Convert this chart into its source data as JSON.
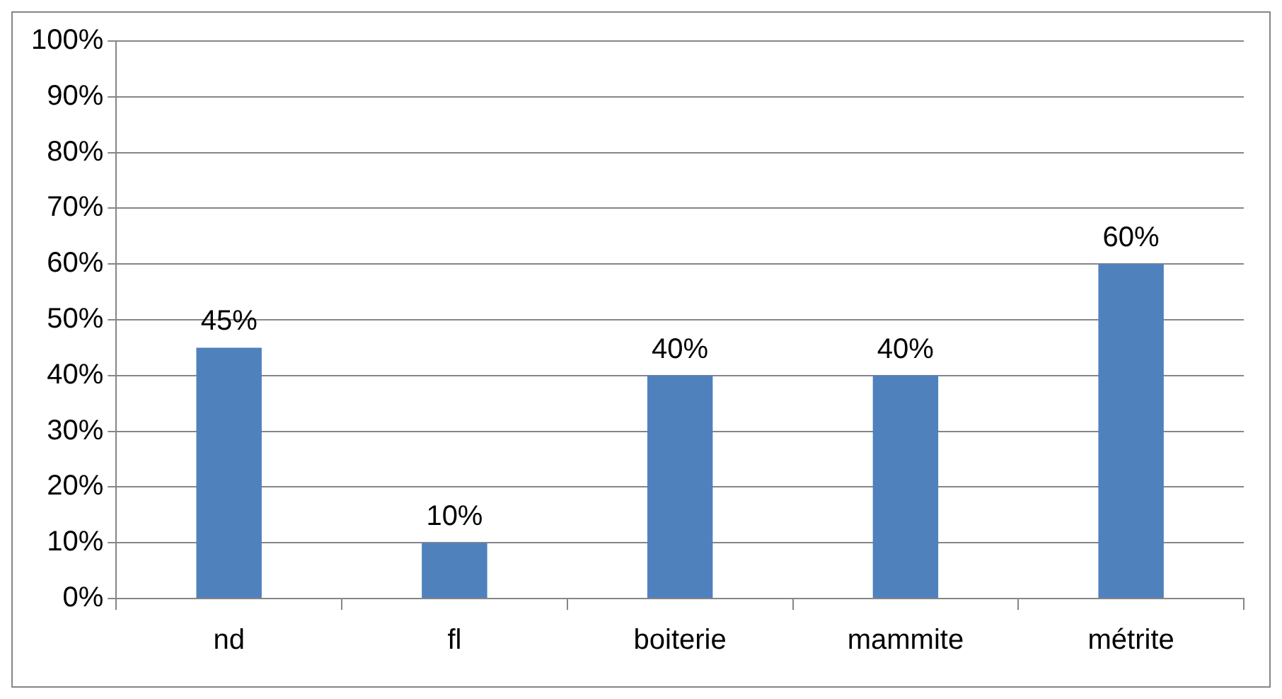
{
  "chart_data": {
    "type": "bar",
    "categories": [
      "nd",
      "fl",
      "boiterie",
      "mammite",
      "métrite"
    ],
    "values": [
      45,
      10,
      40,
      40,
      60
    ],
    "value_labels": [
      "45%",
      "10%",
      "40%",
      "40%",
      "60%"
    ],
    "color": "#4f81bd",
    "ylim": [
      0,
      100
    ],
    "yticks": [
      {
        "value": 0,
        "label": "0%"
      },
      {
        "value": 10,
        "label": "10%"
      },
      {
        "value": 20,
        "label": "20%"
      },
      {
        "value": 30,
        "label": "30%"
      },
      {
        "value": 40,
        "label": "40%"
      },
      {
        "value": 50,
        "label": "50%"
      },
      {
        "value": 60,
        "label": "60%"
      },
      {
        "value": 70,
        "label": "70%"
      },
      {
        "value": 80,
        "label": "80%"
      },
      {
        "value": 90,
        "label": "90%"
      },
      {
        "value": 100,
        "label": "100%"
      }
    ],
    "grid": "y",
    "legend": false
  }
}
